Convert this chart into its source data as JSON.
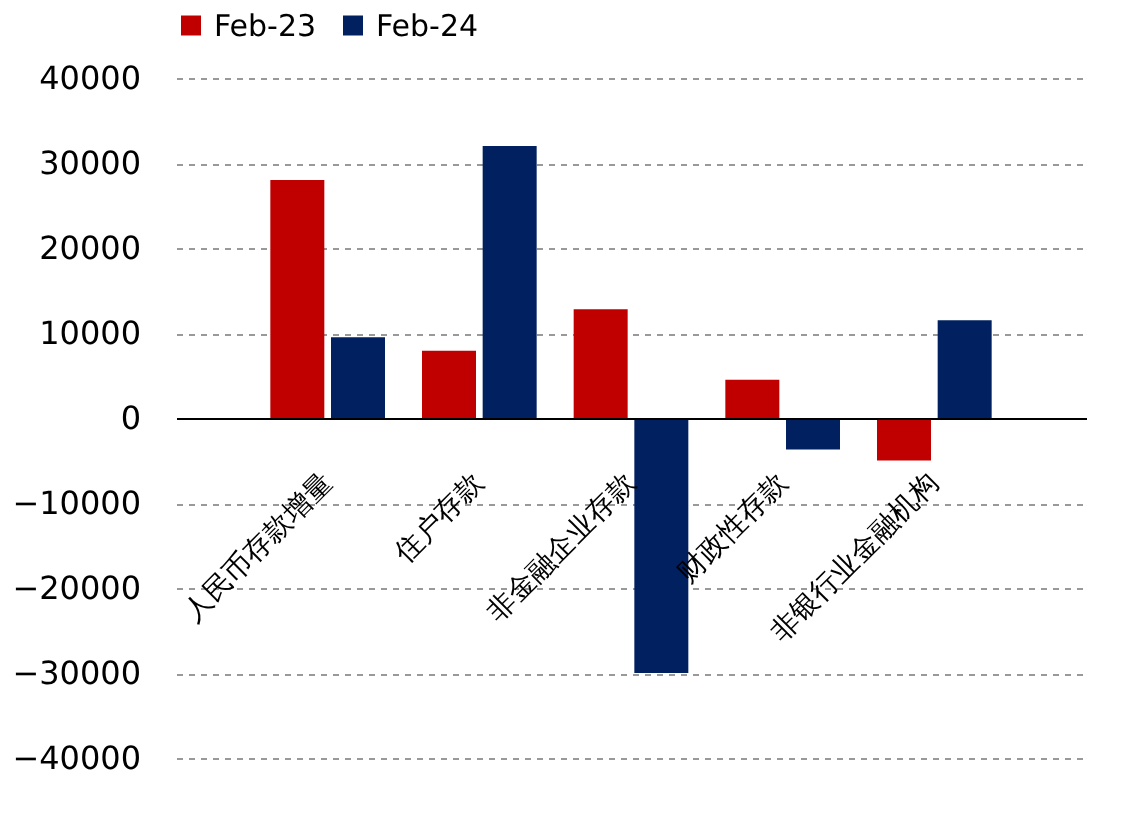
{
  "chart_data": {
    "type": "bar",
    "categories": [
      "人民币存款增量",
      "住户存款",
      "非金融企业存款",
      "财政性存款",
      "非银行业金融机构"
    ],
    "series": [
      {
        "name": "Feb-23",
        "color": "#c00000",
        "values": [
          28000,
          7900,
          12800,
          4500,
          -5000
        ]
      },
      {
        "name": "Feb-24",
        "color": "#002060",
        "values": [
          9500,
          32000,
          -30000,
          -3700,
          11500
        ]
      }
    ],
    "ylim": [
      -40000,
      40000
    ],
    "yticks": [
      -40000,
      -30000,
      -20000,
      -10000,
      0,
      10000,
      20000,
      30000,
      40000
    ],
    "grid": "y",
    "legend": "top"
  }
}
